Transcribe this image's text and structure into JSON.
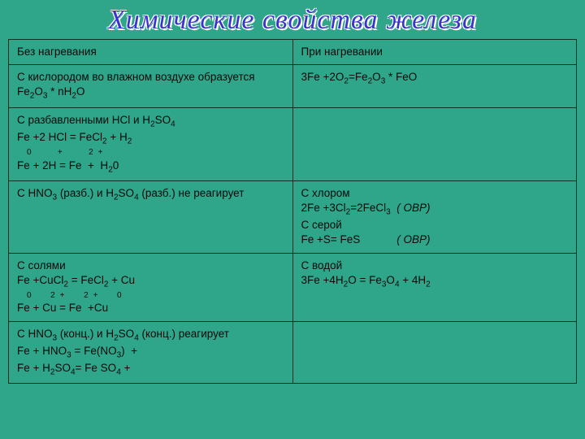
{
  "theme": {
    "background_color": "#2fa58a",
    "title_color": "#3a33cc",
    "title_shadow": "#ffffff",
    "border_color": "#003322",
    "text_color": "#0a0a0a",
    "title_font": "Times New Roman",
    "cell_font": "Arial",
    "title_fontsize": 34,
    "cell_fontsize": 13.5
  },
  "title": "Химические свойства железа",
  "table": {
    "type": "table",
    "columns": [
      "left",
      "right"
    ],
    "rows": [
      {
        "left": "Без нагревания",
        "right": "При нагревании"
      },
      {
        "left": "С кислородом во влажном воздухе образуется Fe₂O₃ * nH₂O",
        "right": "3Fe +2O₂=Fe₂O₃ * FeO"
      },
      {
        "left": "С разбавленными HCl и H₂SO₄\nFe +2 HCl = FeCl₂ + H₂\n   0        +       2+\nFe + 2H = Fe  +  H₂0",
        "right": ""
      },
      {
        "left": "С HNO₃ (разб.) и H₂SO₄ (разб.) не реагирует",
        "right": "С хлором\n2Fe +3Cl₂=2FeCl₃  ( ОВР)\nС серой\nFe +S= FeS            ( ОВР)"
      },
      {
        "left": "С солями\nFe +CuCl₂ = FeCl₂ + Cu\n  0       2+     2+      0\nFe + Cu = Fe  +Cu",
        "right": "С водой\n3Fe +4H₂O = Fe₃O₄ + 4H₂"
      },
      {
        "left": "С HNO₃ (конц.) и H₂SO₄ (конц.) реагирует\nFe + HNO₃ = Fe(NO₃)  +\nFe + H₂SO₄= Fe SO₄ +",
        "right": ""
      }
    ]
  }
}
